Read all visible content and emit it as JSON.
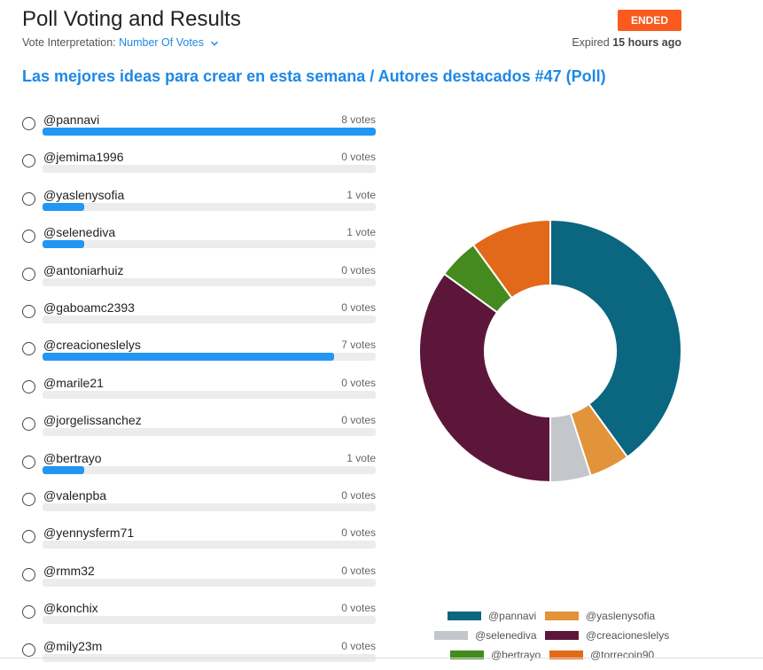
{
  "header": {
    "title": "Poll Voting and Results",
    "status": "ENDED",
    "interpretation_label": "Vote Interpretation:",
    "interpretation_value": "Number Of Votes",
    "expired_prefix": "Expired",
    "expired_value": "15 hours ago"
  },
  "poll_title": "Las mejores ideas para crear en esta semana / Autores destacados #47 (Poll)",
  "options": [
    {
      "name": "@pannavi",
      "votes": "8 votes",
      "count": 8
    },
    {
      "name": "@jemima1996",
      "votes": "0 votes",
      "count": 0
    },
    {
      "name": "@yaslenysofia",
      "votes": "1 vote",
      "count": 1
    },
    {
      "name": "@selenediva",
      "votes": "1 vote",
      "count": 1
    },
    {
      "name": "@antoniarhuiz",
      "votes": "0 votes",
      "count": 0
    },
    {
      "name": "@gaboamc2393",
      "votes": "0 votes",
      "count": 0
    },
    {
      "name": "@creacioneslelys",
      "votes": "7 votes",
      "count": 7
    },
    {
      "name": "@marile21",
      "votes": "0 votes",
      "count": 0
    },
    {
      "name": "@jorgelissanchez",
      "votes": "0 votes",
      "count": 0
    },
    {
      "name": "@bertrayo",
      "votes": "1 vote",
      "count": 1
    },
    {
      "name": "@valenpba",
      "votes": "0 votes",
      "count": 0
    },
    {
      "name": "@yennysferm71",
      "votes": "0 votes",
      "count": 0
    },
    {
      "name": "@rmm32",
      "votes": "0 votes",
      "count": 0
    },
    {
      "name": "@konchix",
      "votes": "0 votes",
      "count": 0
    },
    {
      "name": "@mily23m",
      "votes": "0 votes",
      "count": 0
    }
  ],
  "colors": {
    "accent": "#1e88e5",
    "bar": "#2196f3",
    "badge": "#fa5a1e"
  },
  "chart_data": {
    "type": "pie",
    "donut": true,
    "series": [
      {
        "name": "@pannavi",
        "value": 8,
        "color": "#0b6680"
      },
      {
        "name": "@yaslenysofia",
        "value": 1,
        "color": "#e39339"
      },
      {
        "name": "@selenediva",
        "value": 1,
        "color": "#c3c6ca"
      },
      {
        "name": "@creacioneslelys",
        "value": 7,
        "color": "#5c163a"
      },
      {
        "name": "@bertrayo",
        "value": 1,
        "color": "#448a1e"
      },
      {
        "name": "@torrecoin90",
        "value": 2,
        "color": "#e2691a"
      }
    ],
    "legend": [
      "@pannavi",
      "@yaslenysofia",
      "@selenediva",
      "@creacioneslelys",
      "@bertrayo",
      "@torrecoin90"
    ],
    "legend_placement": "bottom"
  }
}
